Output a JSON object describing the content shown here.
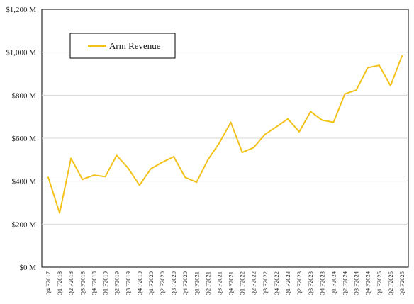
{
  "chart_data": {
    "type": "line",
    "title": "",
    "xlabel": "",
    "ylabel": "",
    "ylim": [
      0,
      1200
    ],
    "y_ticks": [
      0,
      200,
      400,
      600,
      800,
      1000,
      1200
    ],
    "y_tick_labels": [
      "$0 M",
      "$200 M",
      "$400 M",
      "$600 M",
      "$800 M",
      "$1,000 M",
      "$1,200 M"
    ],
    "grid": "horizontal",
    "legend_position": "top-left",
    "categories": [
      "Q4 F2017",
      "Q1 F2018",
      "Q2 F2018",
      "Q3 F2018",
      "Q4 F2018",
      "Q1 F2019",
      "Q2 F2019",
      "Q3 F2019",
      "Q4 F2019",
      "Q1 F2020",
      "Q2 F2020",
      "Q3 F2020",
      "Q4 F2020",
      "Q1 F2021",
      "Q2 F2021",
      "Q3 F2021",
      "Q4 F2021",
      "Q1 F2022",
      "Q2 F2022",
      "Q3 F2022",
      "Q4 F2022",
      "Q1 F2023",
      "Q2 F2023",
      "Q3 F2023",
      "Q4 F2023",
      "Q1 F2024",
      "Q2 F2024",
      "Q3 F2024",
      "Q4 F2024",
      "Q1 F2025",
      "Q2 F2025",
      "Q3 F2025"
    ],
    "series": [
      {
        "name": "Arm Revenue",
        "color": "#f2c21b",
        "values": [
          418,
          252,
          506,
          408,
          428,
          421,
          520,
          461,
          381,
          458,
          488,
          514,
          418,
          395,
          500,
          578,
          674,
          534,
          556,
          618,
          653,
          690,
          630,
          724,
          684,
          674,
          806,
          824,
          928,
          939,
          844,
          983
        ]
      }
    ]
  }
}
